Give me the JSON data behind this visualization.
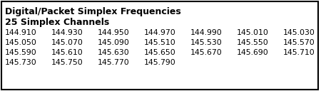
{
  "title_line1": "Digital/Packet Simplex Frequencies",
  "title_line2": "25 Simplex Channels",
  "frequencies": [
    [
      "144.910",
      "144.930",
      "144.950",
      "144.970",
      "144.990",
      "145.010",
      "145.030"
    ],
    [
      "145.050",
      "145.070",
      "145.090",
      "145.510",
      "145.530",
      "145.550",
      "145.570"
    ],
    [
      "145.590",
      "145.610",
      "145.630",
      "145.650",
      "145.670",
      "145.690",
      "145.710"
    ],
    [
      "145.730",
      "145.750",
      "145.770",
      "145.790"
    ]
  ],
  "bg_color": "#ffffff",
  "text_color": "#000000",
  "border_color": "#000000",
  "title_fontsize": 9.0,
  "subtitle_fontsize": 9.0,
  "freq_fontsize": 7.8
}
